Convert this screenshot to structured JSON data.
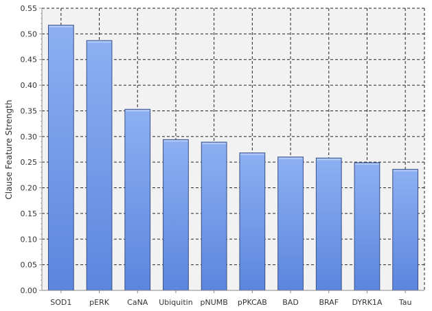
{
  "chart_data": {
    "type": "bar",
    "title": "",
    "xlabel": "",
    "ylabel": "Clause Feature Strength",
    "categories": [
      "SOD1",
      "pERK",
      "CaNA",
      "Ubiquitin",
      "pNUMB",
      "pPKCAB",
      "BAD",
      "BRAF",
      "DYRK1A",
      "Tau"
    ],
    "values": [
      0.517,
      0.487,
      0.353,
      0.294,
      0.289,
      0.268,
      0.26,
      0.258,
      0.249,
      0.236
    ],
    "ylim": [
      0,
      0.55
    ],
    "yticks": [
      "0.00",
      "0.05",
      "0.10",
      "0.15",
      "0.20",
      "0.25",
      "0.30",
      "0.35",
      "0.40",
      "0.45",
      "0.50",
      "0.55"
    ],
    "grid": true,
    "legend": "none",
    "colors": {
      "bar_top": "#8db0f3",
      "bar_bottom": "#5b86dd",
      "bar_edge": "#3a4f86",
      "plot_background": "#f2f2f2"
    }
  }
}
